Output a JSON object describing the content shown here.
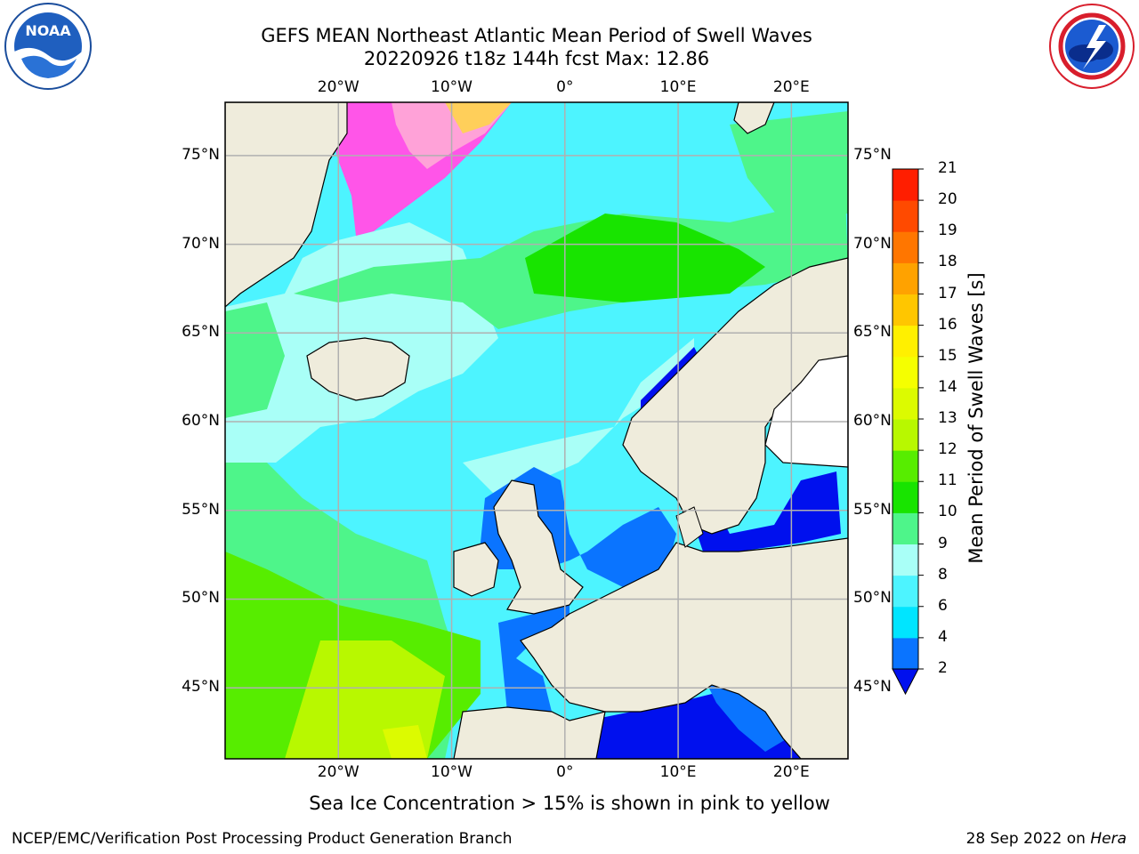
{
  "title": {
    "line1": "GEFS MEAN Northeast Atlantic Mean Period of Swell Waves",
    "line2": "20220926 t18z 144h fcst   Max: 12.86"
  },
  "map": {
    "extent": {
      "lon_min": -30,
      "lon_max": 25,
      "lat_min": 41,
      "lat_max": 78
    },
    "lon_ticks": [
      {
        "lon": -20,
        "label": "20°W"
      },
      {
        "lon": -10,
        "label": "10°W"
      },
      {
        "lon": 0,
        "label": "0°"
      },
      {
        "lon": 10,
        "label": "10°E"
      },
      {
        "lon": 20,
        "label": "20°E"
      }
    ],
    "lat_ticks": [
      {
        "lat": 75,
        "label": "75°N"
      },
      {
        "lat": 70,
        "label": "70°N"
      },
      {
        "lat": 65,
        "label": "65°N"
      },
      {
        "lat": 60,
        "label": "60°N"
      },
      {
        "lat": 55,
        "label": "55°N"
      },
      {
        "lat": 50,
        "label": "50°N"
      },
      {
        "lat": 45,
        "label": "45°N"
      }
    ],
    "land_color": "#efecdc",
    "grid_color": "#b0b0b0"
  },
  "colorbar": {
    "title": "Mean Period of Swell Waves [s]",
    "ticks": [
      "2",
      "4",
      "6",
      "8",
      "9",
      "10",
      "11",
      "12",
      "13",
      "14",
      "15",
      "16",
      "17",
      "18",
      "19",
      "20",
      "21"
    ],
    "colors": [
      "#0a74ff",
      "#00e5ff",
      "#4df4ff",
      "#a9fff7",
      "#4ef58a",
      "#18e400",
      "#57ed00",
      "#b8f800",
      "#dcfb00",
      "#f5ff00",
      "#fff000",
      "#ffc600",
      "#ffa200",
      "#ff7600",
      "#ff4a00",
      "#ff1e00"
    ],
    "extend_color": "#0010ee"
  },
  "ice_note": "Sea Ice Concentration > 15% is shown in pink to yellow",
  "footer": {
    "left": "NCEP/EMC/Verification Post Processing Product Generation Branch",
    "date": "28 Sep 2022 on ",
    "host": "Hera"
  },
  "logos": {
    "left": {
      "name": "noaa-logo",
      "text": "NOAA"
    },
    "right": {
      "name": "nws-logo"
    }
  }
}
